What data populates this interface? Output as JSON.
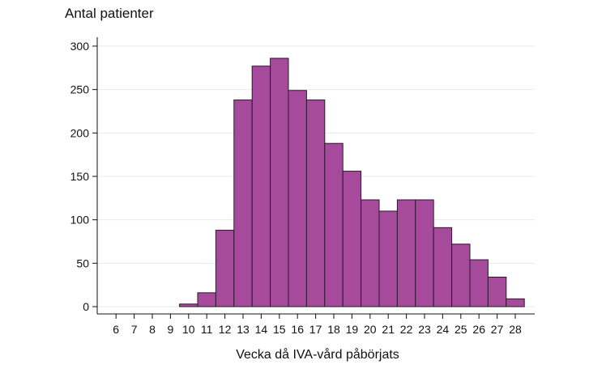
{
  "chart_data": {
    "type": "bar",
    "title": "",
    "ylabel": "Antal patienter",
    "xlabel": "Vecka då IVA-vård påbörjats",
    "categories": [
      "6",
      "7",
      "8",
      "9",
      "10",
      "11",
      "12",
      "13",
      "14",
      "15",
      "16",
      "17",
      "18",
      "19",
      "20",
      "21",
      "22",
      "23",
      "24",
      "25",
      "26",
      "27",
      "28"
    ],
    "values": [
      0,
      0,
      0,
      0,
      3,
      16,
      88,
      238,
      277,
      286,
      249,
      238,
      188,
      156,
      123,
      110,
      123,
      123,
      91,
      72,
      54,
      34,
      9
    ],
    "ylim": [
      0,
      300
    ],
    "yticks": [
      0,
      50,
      100,
      150,
      200,
      250,
      300
    ],
    "grid": true,
    "legend": "none",
    "bar_color": "#a64a9c",
    "bar_edge_color": "#2a1a28",
    "grid_color": "#e6eaee"
  }
}
